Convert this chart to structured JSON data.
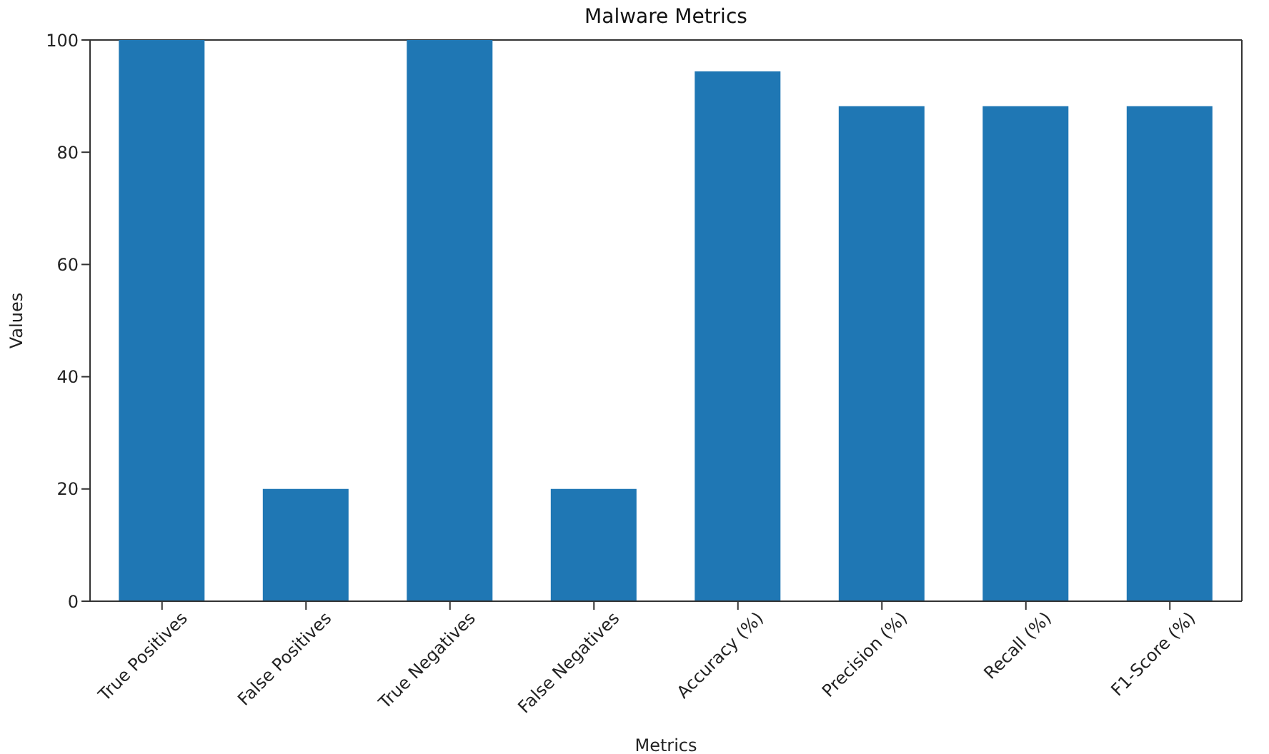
{
  "chart_data": {
    "type": "bar",
    "title": "Malware Metrics",
    "xlabel": "Metrics",
    "ylabel": "Values",
    "categories": [
      "True Positives",
      "False Positives",
      "True Negatives",
      "False Negatives",
      "Accuracy (%)",
      "Precision (%)",
      "Recall (%)",
      "F1-Score (%)"
    ],
    "values": [
      100,
      20,
      100,
      20,
      94.4,
      88.2,
      88.2,
      88.2
    ],
    "color": "#1f77b4",
    "ylim": [
      0,
      100
    ],
    "yticks": [
      0,
      20,
      40,
      60,
      80,
      100
    ],
    "grid": false
  }
}
